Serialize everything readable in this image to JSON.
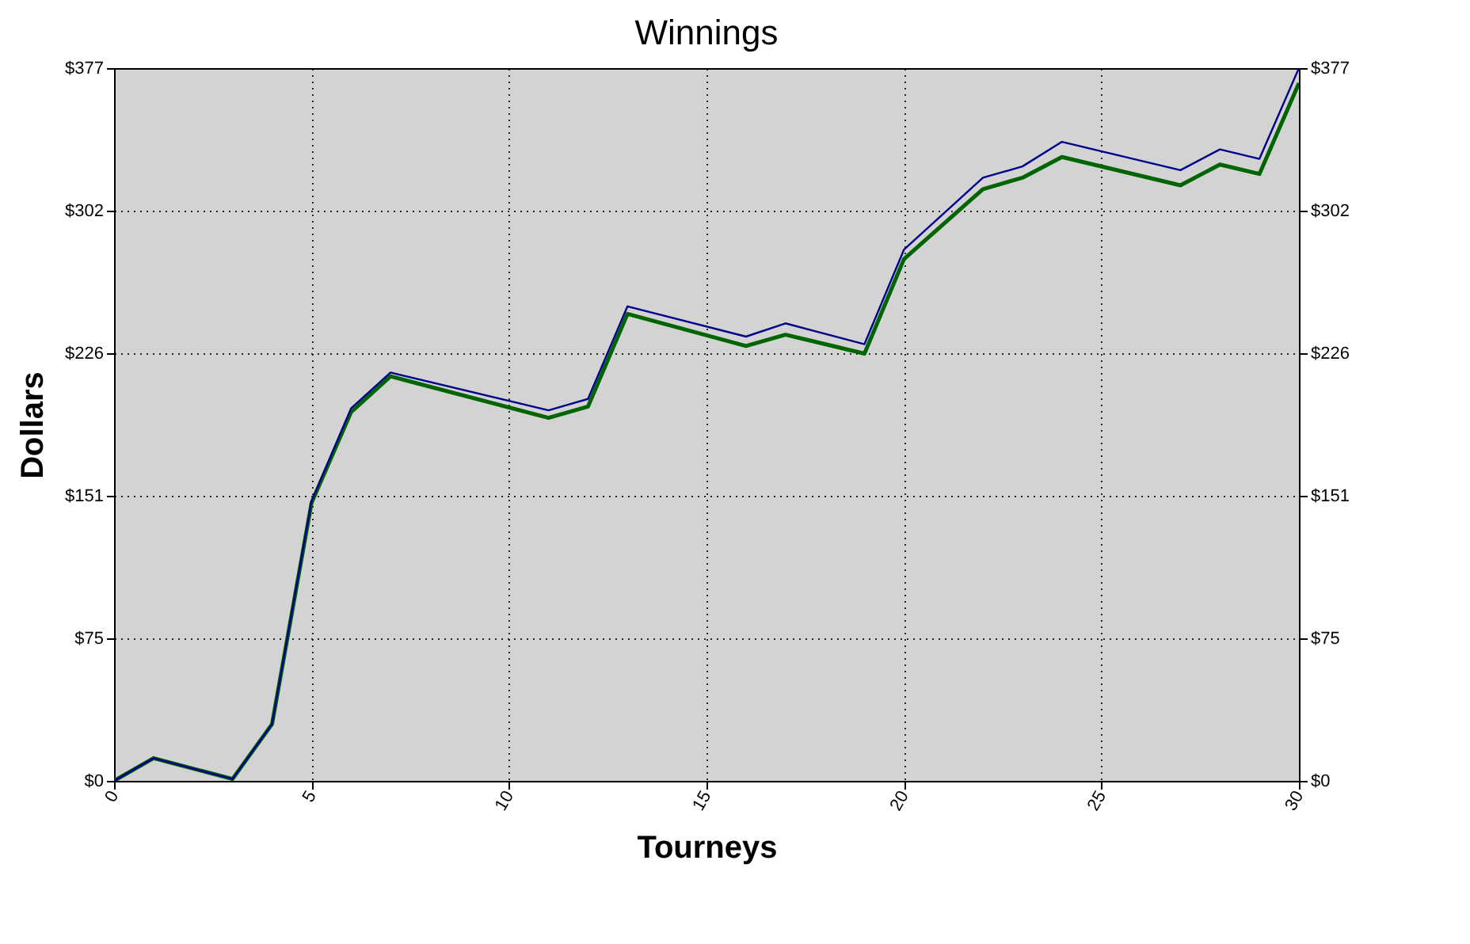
{
  "chart_data": {
    "type": "line",
    "title": "Winnings",
    "xlabel": "Tourneys",
    "ylabel": "Dollars",
    "xlim": [
      0,
      30
    ],
    "xticks": [
      0,
      5,
      10,
      15,
      20,
      25,
      30
    ],
    "ylim": [
      0,
      377
    ],
    "yticks": [
      {
        "value": 0,
        "label": "$0"
      },
      {
        "value": 75.4,
        "label": "$75"
      },
      {
        "value": 150.8,
        "label": "$151"
      },
      {
        "value": 226.2,
        "label": "$226"
      },
      {
        "value": 301.6,
        "label": "$302"
      },
      {
        "value": 377,
        "label": "$377"
      }
    ],
    "y2lim": [
      0,
      377
    ],
    "y2ticks": [
      {
        "value": 0,
        "label": "$0"
      },
      {
        "value": 75.4,
        "label": "$75"
      },
      {
        "value": 150.8,
        "label": "$151"
      },
      {
        "value": 226.2,
        "label": "$226"
      },
      {
        "value": 301.6,
        "label": "$302"
      },
      {
        "value": 377,
        "label": "$377"
      }
    ],
    "grid": true,
    "legend": false,
    "marker": "none",
    "line_style": "solid",
    "series": [
      {
        "color": "#006400",
        "x": [
          0,
          1,
          3,
          4,
          5,
          6,
          7,
          11,
          12,
          13,
          16,
          17,
          19,
          20,
          22,
          23,
          24,
          27,
          28,
          29,
          30
        ],
        "values": [
          0,
          12,
          1,
          30,
          147,
          195,
          214,
          192,
          198,
          247,
          230,
          236,
          226,
          276,
          313,
          319,
          330,
          315,
          326,
          321,
          369
        ]
      },
      {
        "color": "#00008b",
        "x": [
          0,
          1,
          3,
          4,
          5,
          6,
          7,
          11,
          12,
          13,
          16,
          17,
          19,
          20,
          22,
          23,
          24,
          27,
          28,
          29,
          30
        ],
        "values": [
          0,
          12,
          1,
          30,
          148,
          197,
          216,
          196,
          202,
          251,
          235,
          242,
          231,
          281,
          319,
          325,
          338,
          323,
          334,
          329,
          377
        ]
      }
    ]
  }
}
